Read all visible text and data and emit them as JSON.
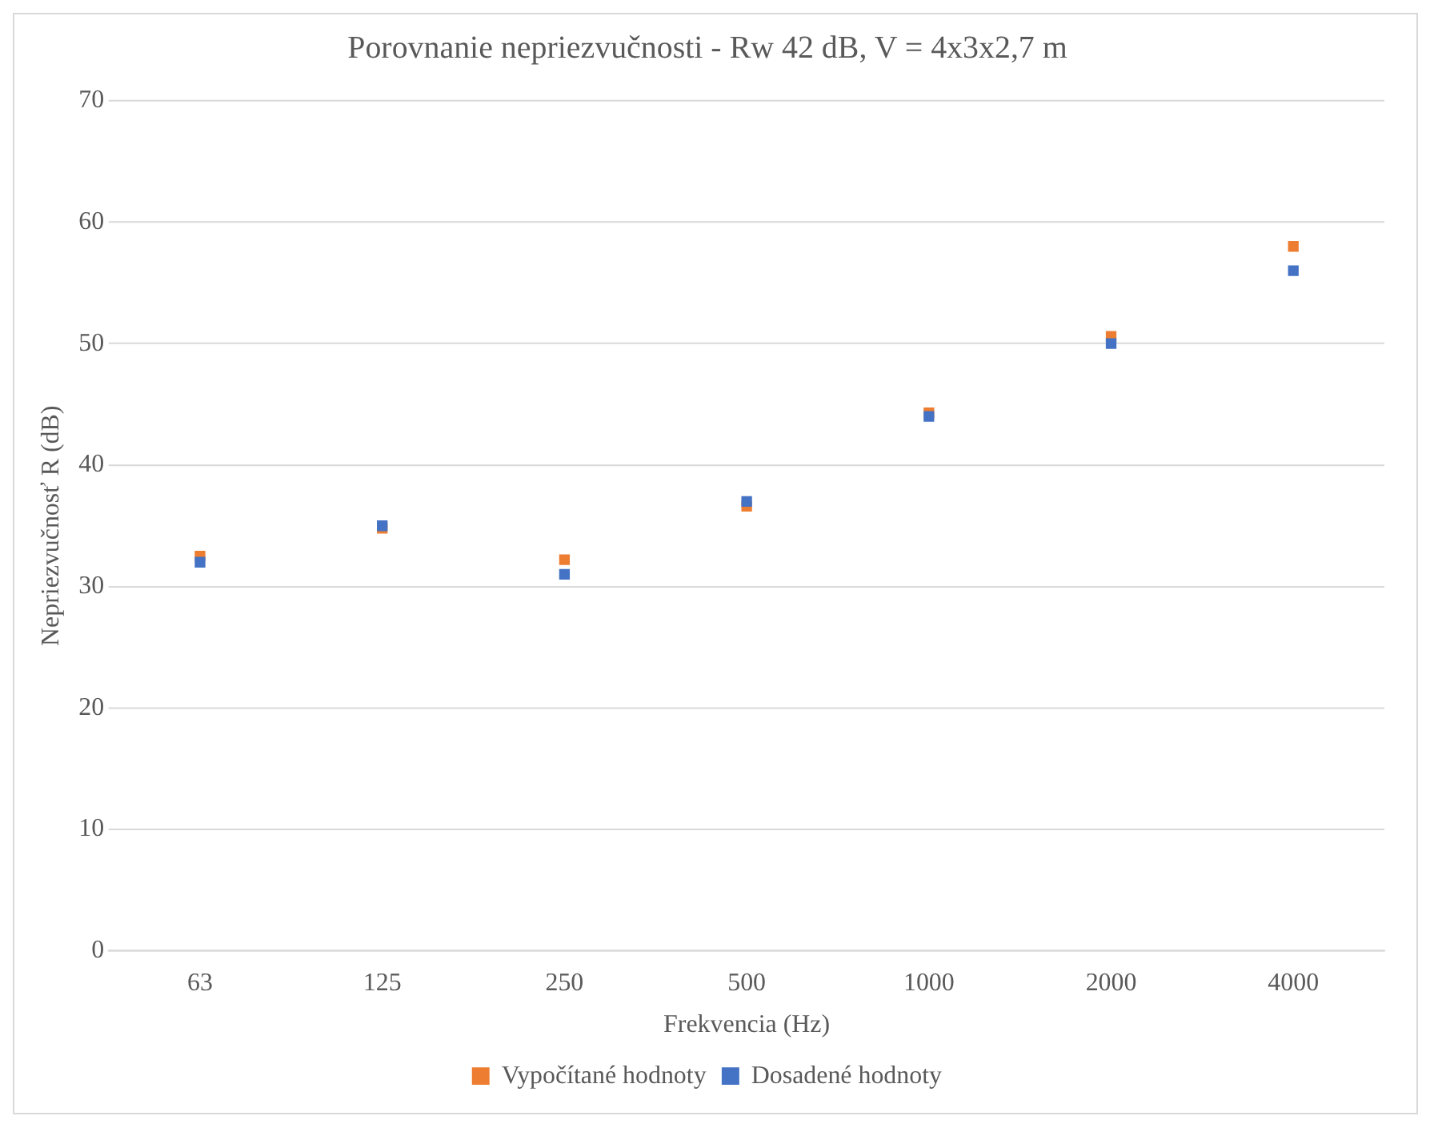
{
  "chart_data": {
    "type": "scatter",
    "title": "Porovnanie nepriezvučnosti - Rw 42 dB, V = 4x3x2,7 m",
    "xlabel": "Frekvencia (Hz)",
    "ylabel": "Nepriezvučnosť R (dB)",
    "categories": [
      "63",
      "125",
      "250",
      "500",
      "1000",
      "2000",
      "4000"
    ],
    "series": [
      {
        "name": "Vypočítané hodnoty",
        "color": "#ed7d31",
        "values": [
          32.5,
          34.8,
          32.2,
          36.6,
          44.3,
          50.6,
          58
        ]
      },
      {
        "name": "Dosadené hodnoty",
        "color": "#4472c4",
        "values": [
          32,
          35,
          31,
          37,
          44,
          50,
          56
        ]
      }
    ],
    "ylim": [
      0,
      70
    ],
    "yticks": [
      0,
      10,
      20,
      30,
      40,
      50,
      60,
      70
    ],
    "grid": "y",
    "legend": "bottom",
    "marker": "square"
  }
}
